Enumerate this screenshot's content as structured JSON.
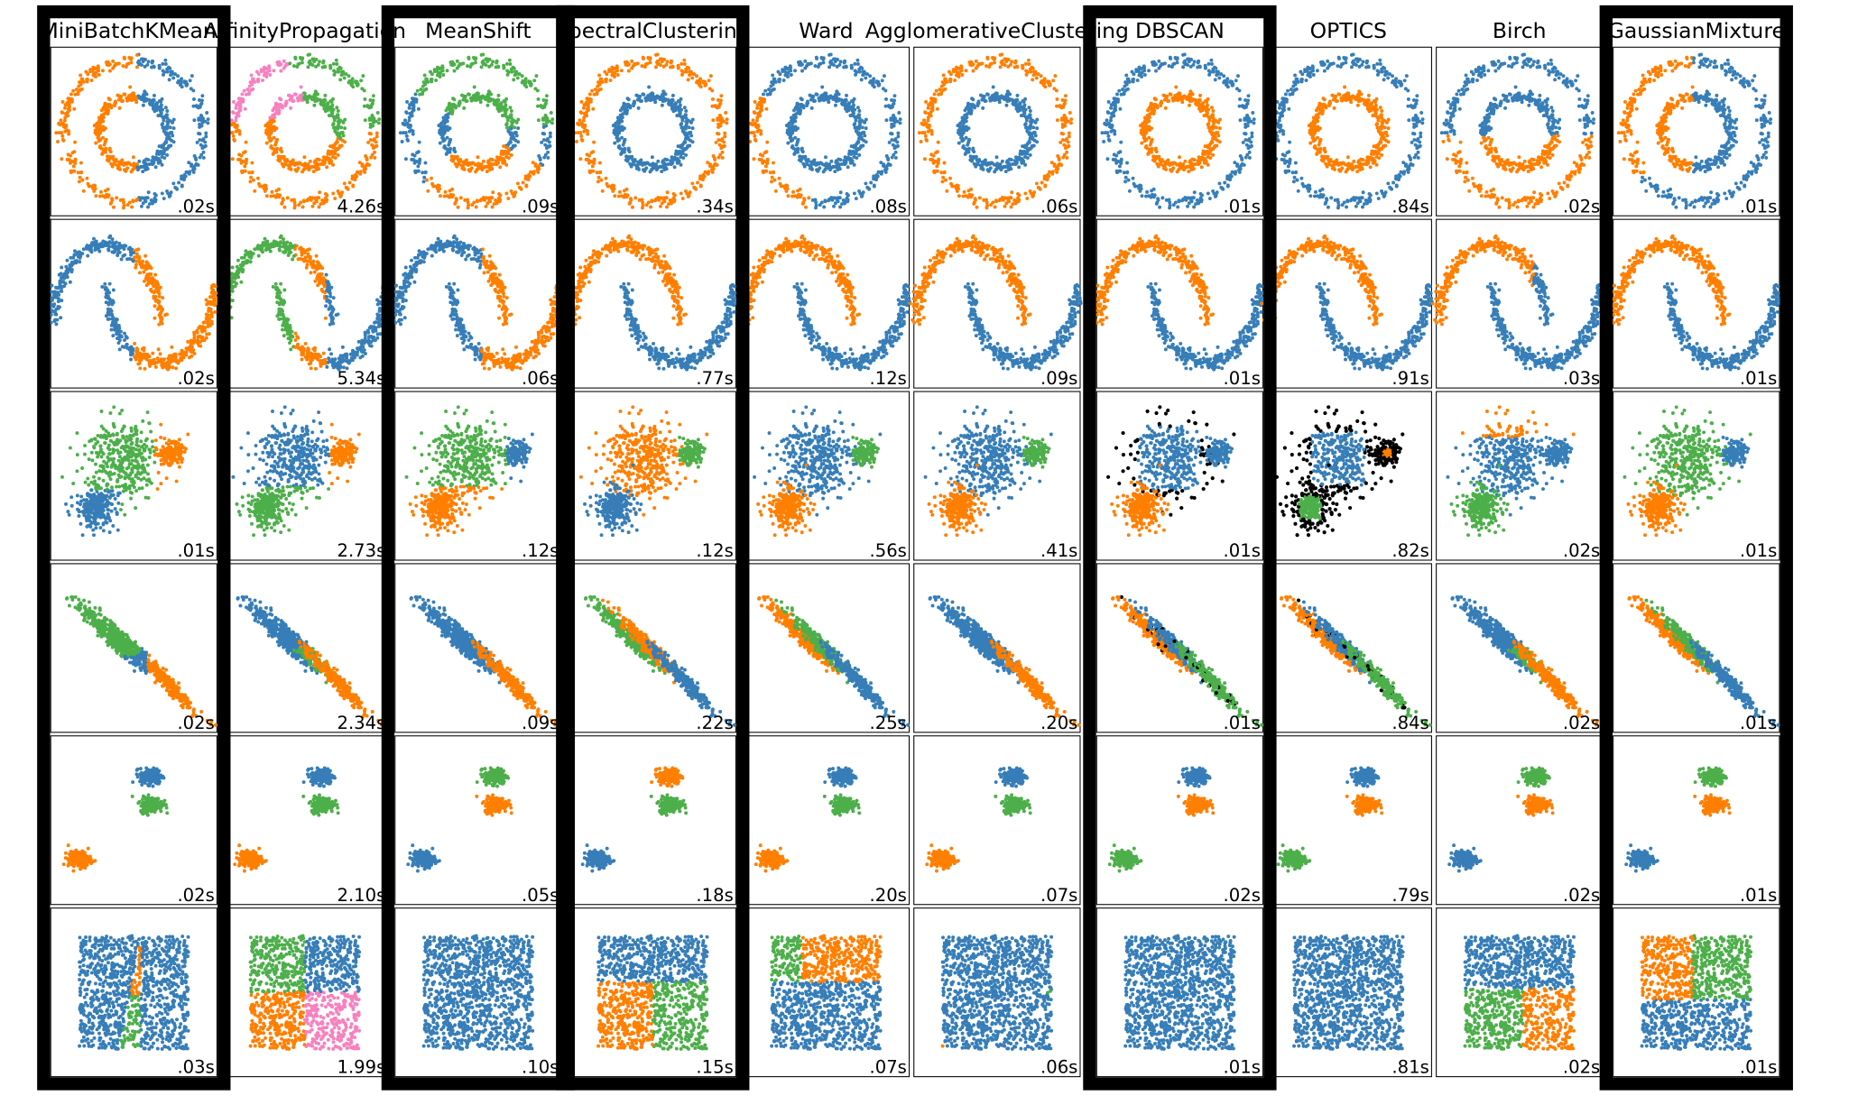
{
  "chart_data": {
    "type": "scatter",
    "layout": "grid",
    "rows": 6,
    "cols": 10,
    "datasets": [
      "noisy_circles",
      "noisy_moons",
      "varied",
      "aniso",
      "blobs",
      "no_structure"
    ],
    "algorithms": [
      {
        "name": "MiniBatchKMeans",
        "highlighted": true
      },
      {
        "name": "AffinityPropagation",
        "highlighted": false
      },
      {
        "name": "MeanShift",
        "highlighted": true
      },
      {
        "name": "SpectralClustering",
        "highlighted": true
      },
      {
        "name": "Ward",
        "highlighted": false
      },
      {
        "name": "AgglomerativeClustering",
        "highlighted": false
      },
      {
        "name": "DBSCAN",
        "highlighted": true
      },
      {
        "name": "OPTICS",
        "highlighted": false
      },
      {
        "name": "Birch",
        "highlighted": false
      },
      {
        "name": "GaussianMixture",
        "highlighted": true
      }
    ],
    "times": [
      [
        ".02s",
        "4.26s",
        ".09s",
        ".34s",
        ".08s",
        ".06s",
        ".01s",
        ".84s",
        ".02s",
        ".01s"
      ],
      [
        ".02s",
        "5.34s",
        ".06s",
        ".77s",
        ".12s",
        ".09s",
        ".01s",
        ".91s",
        ".03s",
        ".01s"
      ],
      [
        ".01s",
        "2.73s",
        ".12s",
        ".12s",
        ".56s",
        ".41s",
        ".01s",
        ".82s",
        ".02s",
        ".01s"
      ],
      [
        ".02s",
        "2.34s",
        ".09s",
        ".22s",
        ".25s",
        ".20s",
        ".01s",
        ".84s",
        ".02s",
        ".01s"
      ],
      [
        ".02s",
        "2.10s",
        ".05s",
        ".18s",
        ".20s",
        ".07s",
        ".02s",
        ".79s",
        ".02s",
        ".01s"
      ],
      [
        ".03s",
        "1.99s",
        ".10s",
        ".15s",
        ".07s",
        ".06s",
        ".01s",
        ".81s",
        ".02s",
        ".01s"
      ]
    ],
    "cluster_colors": [
      "#377eb8",
      "#ff7f00",
      "#4daf4a",
      "#f781bf",
      "#a65628",
      "#984ea3",
      "#999999",
      "#e41a1c",
      "#dede00"
    ],
    "noise_color": "#000000",
    "highlight_color": "#000000",
    "grid": false,
    "axes_ticks": false
  }
}
